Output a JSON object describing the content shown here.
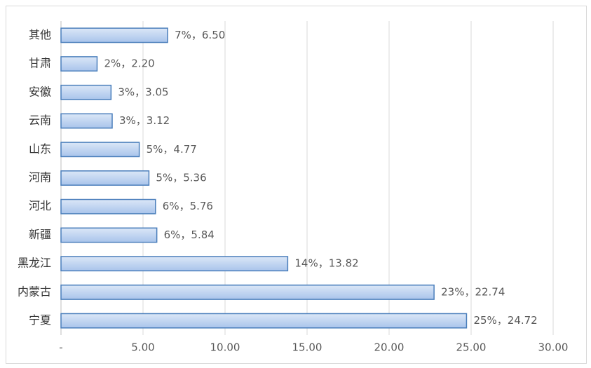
{
  "chart_data": {
    "type": "bar",
    "orientation": "horizontal",
    "categories": [
      "其他",
      "甘肃",
      "安徽",
      "云南",
      "山东",
      "河南",
      "河北",
      "新疆",
      "黑龙江",
      "内蒙古",
      "宁夏"
    ],
    "values": [
      6.5,
      2.2,
      3.05,
      3.12,
      4.77,
      5.36,
      5.76,
      5.84,
      13.82,
      22.74,
      24.72
    ],
    "value_labels": [
      "7%，6.50",
      "2%，2.20",
      "3%，3.05",
      "3%，3.12",
      "5%，4.77",
      "5%，5.36",
      "6%，5.76",
      "6%，5.84",
      "14%，13.82",
      "23%，22.74",
      "25%，24.72"
    ],
    "color": "#a9c4eb",
    "edge_color": "#4a7ebb",
    "xlim": [
      0,
      30
    ],
    "xticks": [
      {
        "value": 0,
        "label": "-"
      },
      {
        "value": 5,
        "label": "5.00"
      },
      {
        "value": 10,
        "label": "10.00"
      },
      {
        "value": 15,
        "label": "15.00"
      },
      {
        "value": 20,
        "label": "20.00"
      },
      {
        "value": 25,
        "label": "25.00"
      },
      {
        "value": 30,
        "label": "30.00"
      }
    ],
    "grid": true
  }
}
